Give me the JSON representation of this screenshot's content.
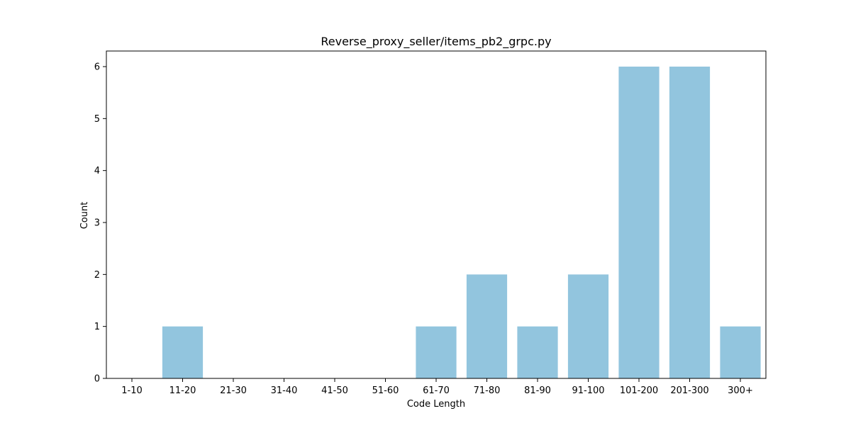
{
  "chart_data": {
    "type": "bar",
    "title": "Reverse_proxy_seller/items_pb2_grpc.py",
    "xlabel": "Code Length",
    "ylabel": "Count",
    "categories": [
      "1-10",
      "11-20",
      "21-30",
      "31-40",
      "41-50",
      "51-60",
      "61-70",
      "71-80",
      "81-90",
      "91-100",
      "101-200",
      "201-300",
      "300+"
    ],
    "values": [
      0,
      1,
      0,
      0,
      0,
      0,
      1,
      2,
      1,
      2,
      6,
      6,
      1
    ],
    "ylim": [
      0,
      6.3
    ],
    "yticks": [
      0,
      1,
      2,
      3,
      4,
      5,
      6
    ],
    "grid": false,
    "bar_color": "#92c5de"
  }
}
